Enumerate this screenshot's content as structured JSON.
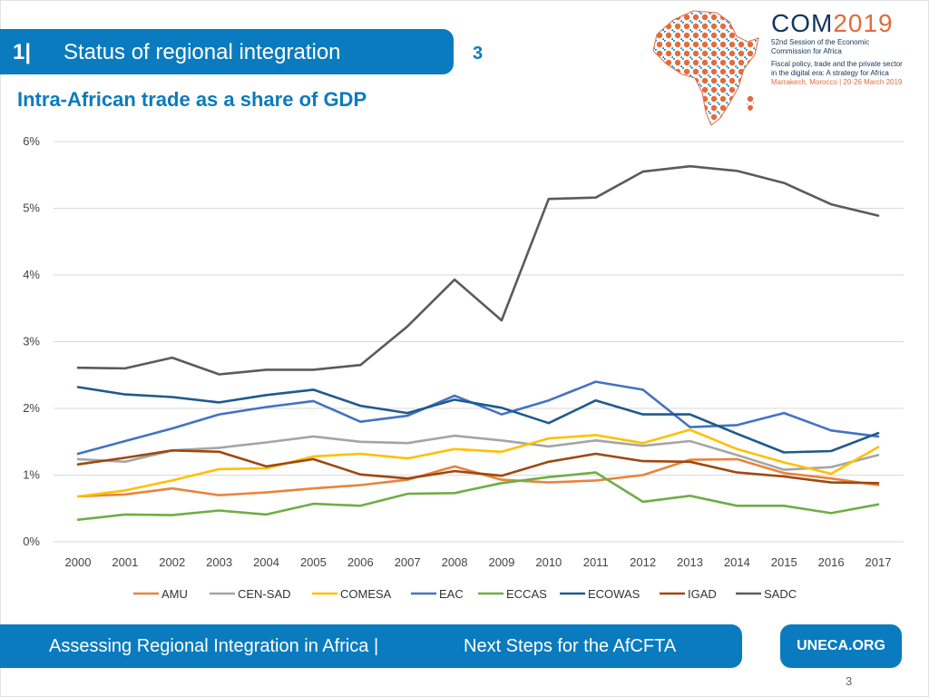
{
  "header": {
    "section_number": "1|",
    "section_label": "Status of regional integration",
    "section_page": "3",
    "title": "Intra-African trade as a share of GDP"
  },
  "logo": {
    "com": "COM",
    "year": "2019",
    "session": "52nd Session of the Economic",
    "commission": "Commission for Africa",
    "theme1": "Fiscal policy, trade and the private sector",
    "theme2": "in the digital era: A strategy for Africa",
    "place_date": "Marrakech, Morocco | 20-26 March 2019"
  },
  "footer": {
    "left": "Assessing Regional Integration in Africa |",
    "right": "Next Steps for the AfCFTA",
    "badge": "UNECA.ORG",
    "page": "3"
  },
  "chart_data": {
    "type": "line",
    "title": "Intra-African trade as a share of GDP",
    "xlabel": "",
    "ylabel": "",
    "ylim": [
      0,
      6
    ],
    "y_ticks": [
      "0%",
      "1%",
      "2%",
      "3%",
      "4%",
      "5%",
      "6%"
    ],
    "grid": true,
    "legend_position": "bottom",
    "categories": [
      "2000",
      "2001",
      "2002",
      "2003",
      "2004",
      "2005",
      "2006",
      "2007",
      "2008",
      "2009",
      "2010",
      "2011",
      "2012",
      "2013",
      "2014",
      "2015",
      "2016",
      "2017"
    ],
    "series": [
      {
        "name": "AMU",
        "color": "#e8843c",
        "values": [
          0.68,
          0.71,
          0.8,
          0.7,
          0.74,
          0.8,
          0.85,
          0.93,
          1.13,
          0.93,
          0.89,
          0.92,
          1.0,
          1.23,
          1.24,
          1.03,
          0.95,
          0.85
        ]
      },
      {
        "name": "CEN-SAD",
        "color": "#a5a5a5",
        "values": [
          1.24,
          1.2,
          1.37,
          1.41,
          1.49,
          1.58,
          1.5,
          1.48,
          1.59,
          1.52,
          1.43,
          1.52,
          1.44,
          1.51,
          1.3,
          1.08,
          1.12,
          1.3
        ]
      },
      {
        "name": "COMESA",
        "color": "#ffc000",
        "values": [
          0.68,
          0.77,
          0.92,
          1.09,
          1.1,
          1.28,
          1.32,
          1.25,
          1.39,
          1.35,
          1.55,
          1.6,
          1.48,
          1.68,
          1.39,
          1.19,
          1.02,
          1.42
        ]
      },
      {
        "name": "EAC",
        "color": "#4472c4",
        "values": [
          1.32,
          1.51,
          1.7,
          1.91,
          2.02,
          2.11,
          1.8,
          1.89,
          2.19,
          1.91,
          2.12,
          2.4,
          2.28,
          1.72,
          1.75,
          1.93,
          1.67,
          1.58
        ]
      },
      {
        "name": "ECCAS",
        "color": "#70ad47",
        "values": [
          0.33,
          0.41,
          0.4,
          0.47,
          0.41,
          0.57,
          0.54,
          0.72,
          0.73,
          0.88,
          0.97,
          1.04,
          0.6,
          0.69,
          0.54,
          0.54,
          0.43,
          0.56
        ]
      },
      {
        "name": "ECOWAS",
        "color": "#1f5a8c",
        "values": [
          2.32,
          2.21,
          2.17,
          2.09,
          2.2,
          2.28,
          2.04,
          1.93,
          2.13,
          2.01,
          1.78,
          2.12,
          1.91,
          1.91,
          1.62,
          1.34,
          1.36,
          1.63
        ]
      },
      {
        "name": "IGAD",
        "color": "#9e480e",
        "values": [
          1.16,
          1.26,
          1.37,
          1.35,
          1.13,
          1.24,
          1.01,
          0.95,
          1.06,
          0.99,
          1.2,
          1.32,
          1.21,
          1.2,
          1.04,
          0.98,
          0.89,
          0.88
        ]
      },
      {
        "name": "SADC",
        "color": "#5b5b5b",
        "values": [
          2.61,
          2.6,
          2.76,
          2.51,
          2.58,
          2.58,
          2.65,
          3.23,
          3.93,
          3.32,
          5.14,
          5.16,
          5.55,
          5.63,
          5.56,
          5.38,
          5.06,
          4.89
        ]
      }
    ]
  }
}
